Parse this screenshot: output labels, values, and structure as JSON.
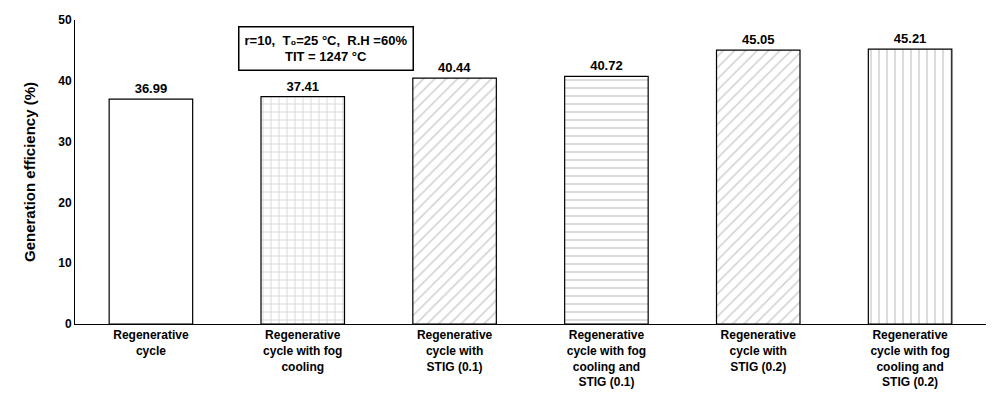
{
  "chart_data": {
    "type": "bar",
    "categories": [
      "Regenerative\ncycle",
      "Regenerative\ncycle with fog\ncooling",
      "Regenerative\ncycle with\nSTIG (0.1)",
      "Regenerative\ncycle with fog\ncooling and\nSTIG (0.1)",
      "Regenerative\ncycle with\nSTIG (0.2)",
      "Regenerative\ncycle with fog\ncooling and\nSTIG (0.2)"
    ],
    "values": [
      36.99,
      37.41,
      40.44,
      40.72,
      45.05,
      45.21
    ],
    "colors": [
      "white",
      "#d3d3d3",
      "#d3d3d3",
      "#d3d3d3",
      "#d3d3d3",
      "#d3d3d3"
    ],
    "ylabel": "Generation efficiency (%)",
    "ylim": [
      0,
      50
    ],
    "yticks": [
      0,
      10,
      20,
      30,
      40,
      50
    ],
    "annotation": "r=10,  T₀=25 °C,  R.H =60%\nTIT = 1247 °C",
    "data_labels": true,
    "grid": false
  }
}
